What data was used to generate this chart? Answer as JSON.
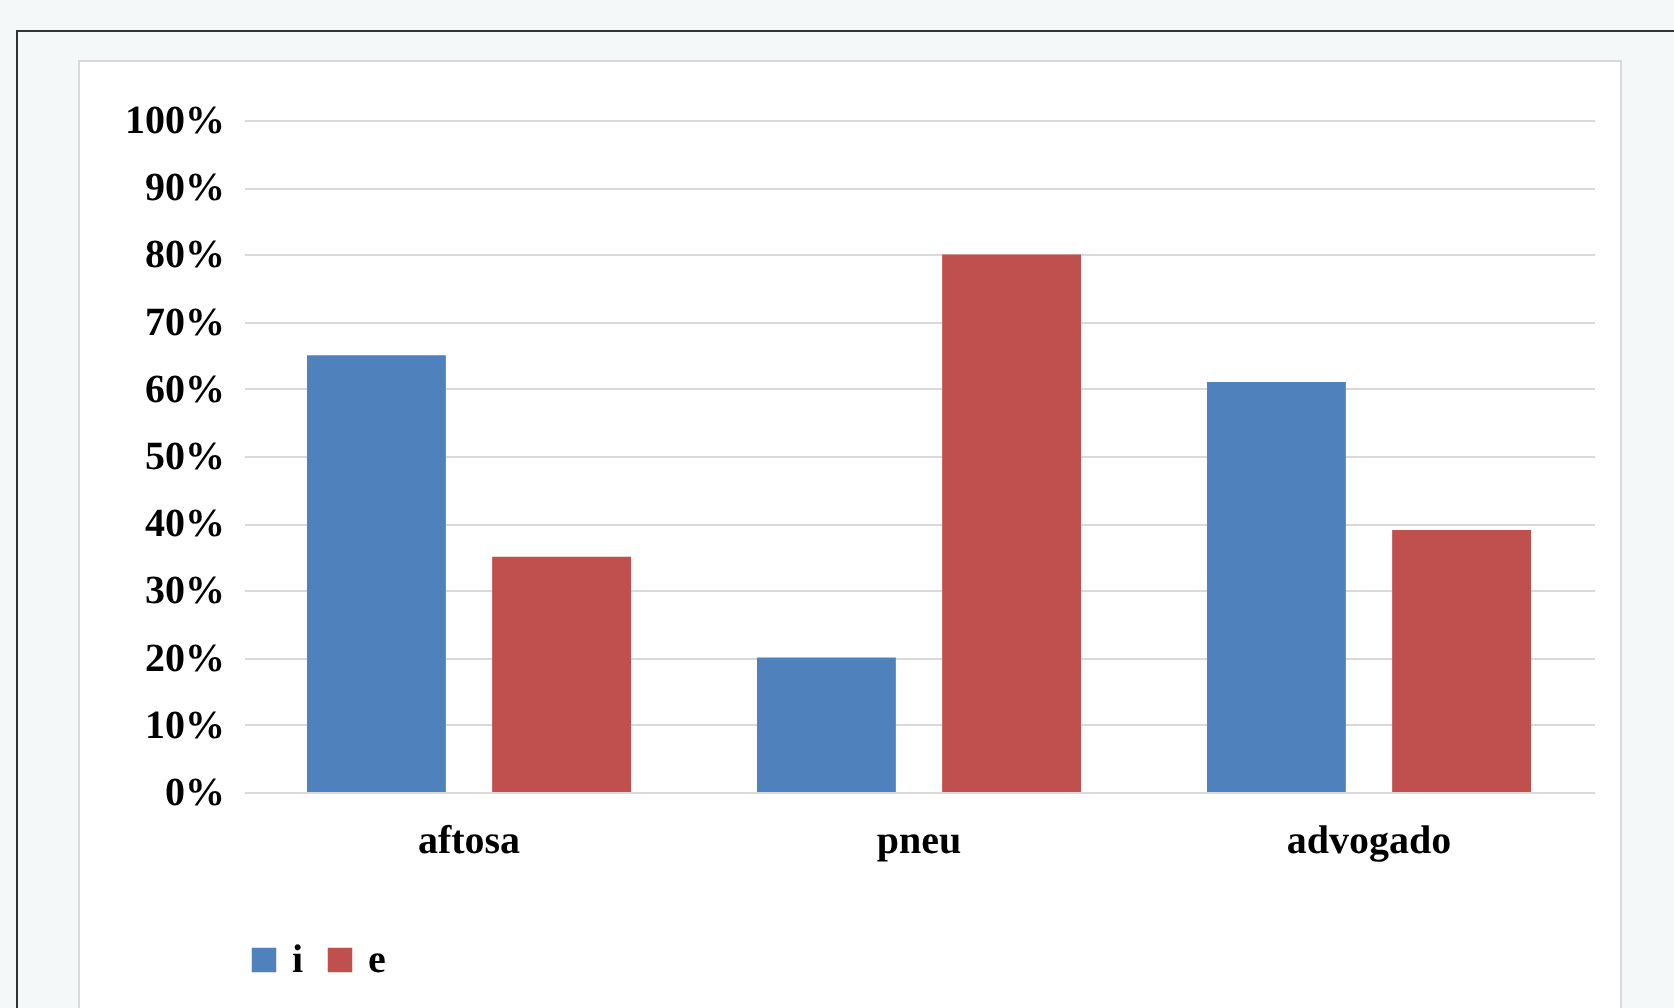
{
  "chart_data": {
    "type": "bar",
    "categories": [
      "aftosa",
      "pneu",
      "advogado"
    ],
    "series": [
      {
        "name": "i",
        "color": "#4f81bd",
        "values": [
          65,
          20,
          61
        ]
      },
      {
        "name": "e",
        "color": "#c0504d",
        "values": [
          35,
          80,
          39
        ]
      }
    ],
    "ylim": [
      0,
      100
    ],
    "yticks": [
      {
        "value": 0,
        "label": "0%"
      },
      {
        "value": 10,
        "label": "10%"
      },
      {
        "value": 20,
        "label": "20%"
      },
      {
        "value": 30,
        "label": "30%"
      },
      {
        "value": 40,
        "label": "40%"
      },
      {
        "value": 50,
        "label": "50%"
      },
      {
        "value": 60,
        "label": "60%"
      },
      {
        "value": 70,
        "label": "70%"
      },
      {
        "value": 80,
        "label": "80%"
      },
      {
        "value": 90,
        "label": "90%"
      },
      {
        "value": 100,
        "label": "100%"
      }
    ],
    "grid": "y",
    "legend": "bottom"
  }
}
